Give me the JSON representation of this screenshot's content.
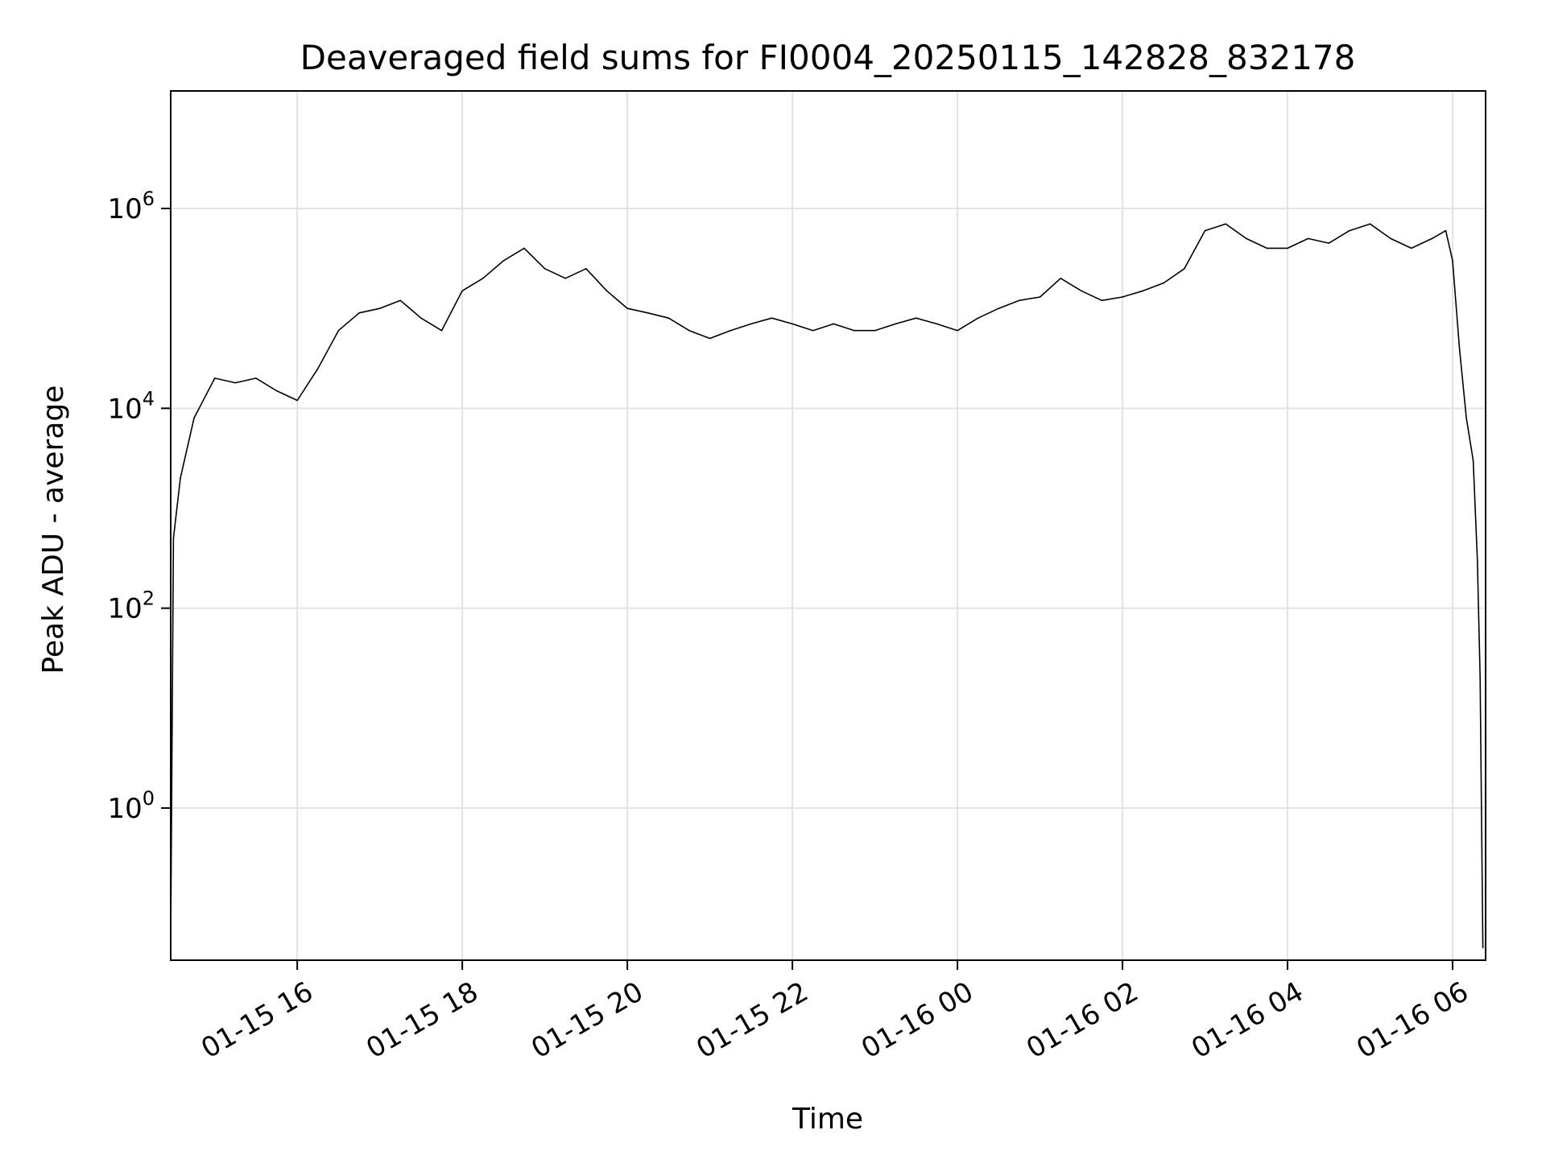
{
  "chart_data": {
    "type": "line",
    "title": "Deaveraged field sums for FI0004_20250115_142828_832178",
    "xlabel": "Time",
    "ylabel": "Peak ADU - average",
    "yscale": "log",
    "ylim": [
      0.03,
      15000000
    ],
    "xlim": [
      "01-15 14:28",
      "01-16 06:24"
    ],
    "grid": true,
    "line_color": "#000000",
    "x_ticks": [
      {
        "label": "01-15 16",
        "time": "01-15 16:00"
      },
      {
        "label": "01-15 18",
        "time": "01-15 18:00"
      },
      {
        "label": "01-15 20",
        "time": "01-15 20:00"
      },
      {
        "label": "01-15 22",
        "time": "01-15 22:00"
      },
      {
        "label": "01-16 00",
        "time": "01-16 00:00"
      },
      {
        "label": "01-16 02",
        "time": "01-16 02:00"
      },
      {
        "label": "01-16 04",
        "time": "01-16 04:00"
      },
      {
        "label": "01-16 06",
        "time": "01-16 06:00"
      }
    ],
    "y_ticks": [
      {
        "base": "10",
        "exp": "0",
        "value": 1
      },
      {
        "base": "10",
        "exp": "2",
        "value": 100
      },
      {
        "base": "10",
        "exp": "4",
        "value": 10000
      },
      {
        "base": "10",
        "exp": "6",
        "value": 1000000
      }
    ],
    "series": [
      {
        "x": [
          "01-15 14:28",
          "01-15 14:30",
          "01-15 14:35",
          "01-15 14:45",
          "01-15 15:00",
          "01-15 15:15",
          "01-15 15:30",
          "01-15 15:45",
          "01-15 16:00",
          "01-15 16:15",
          "01-15 16:30",
          "01-15 16:45",
          "01-15 17:00",
          "01-15 17:15",
          "01-15 17:30",
          "01-15 17:45",
          "01-15 18:00",
          "01-15 18:15",
          "01-15 18:30",
          "01-15 18:45",
          "01-15 19:00",
          "01-15 19:15",
          "01-15 19:30",
          "01-15 19:45",
          "01-15 20:00",
          "01-15 20:15",
          "01-15 20:30",
          "01-15 20:45",
          "01-15 21:00",
          "01-15 21:15",
          "01-15 21:30",
          "01-15 21:45",
          "01-15 22:00",
          "01-15 22:15",
          "01-15 22:30",
          "01-15 22:45",
          "01-15 23:00",
          "01-15 23:15",
          "01-15 23:30",
          "01-15 23:45",
          "01-16 00:00",
          "01-16 00:15",
          "01-16 00:30",
          "01-16 00:45",
          "01-16 01:00",
          "01-16 01:15",
          "01-16 01:30",
          "01-16 01:45",
          "01-16 02:00",
          "01-16 02:15",
          "01-16 02:30",
          "01-16 02:45",
          "01-16 03:00",
          "01-16 03:15",
          "01-16 03:30",
          "01-16 03:45",
          "01-16 04:00",
          "01-16 04:15",
          "01-16 04:30",
          "01-16 04:45",
          "01-16 05:00",
          "01-16 05:15",
          "01-16 05:30",
          "01-16 05:45",
          "01-16 05:55",
          "01-16 06:00",
          "01-16 06:05",
          "01-16 06:10",
          "01-16 06:15",
          "01-16 06:18",
          "01-16 06:20",
          "01-16 06:22"
        ],
        "values": [
          0.05,
          500,
          2000,
          8000,
          20000,
          18000,
          20000,
          15000,
          12000,
          25000,
          60000,
          90000,
          100000,
          120000,
          80000,
          60000,
          150000,
          200000,
          300000,
          400000,
          250000,
          200000,
          250000,
          150000,
          100000,
          90000,
          80000,
          60000,
          50000,
          60000,
          70000,
          80000,
          70000,
          60000,
          70000,
          60000,
          60000,
          70000,
          80000,
          70000,
          60000,
          80000,
          100000,
          120000,
          130000,
          200000,
          150000,
          120000,
          130000,
          150000,
          180000,
          250000,
          600000,
          700000,
          500000,
          400000,
          400000,
          500000,
          450000,
          600000,
          700000,
          500000,
          400000,
          500000,
          600000,
          300000,
          40000,
          8000,
          3000,
          300,
          20,
          0.04
        ]
      }
    ]
  }
}
